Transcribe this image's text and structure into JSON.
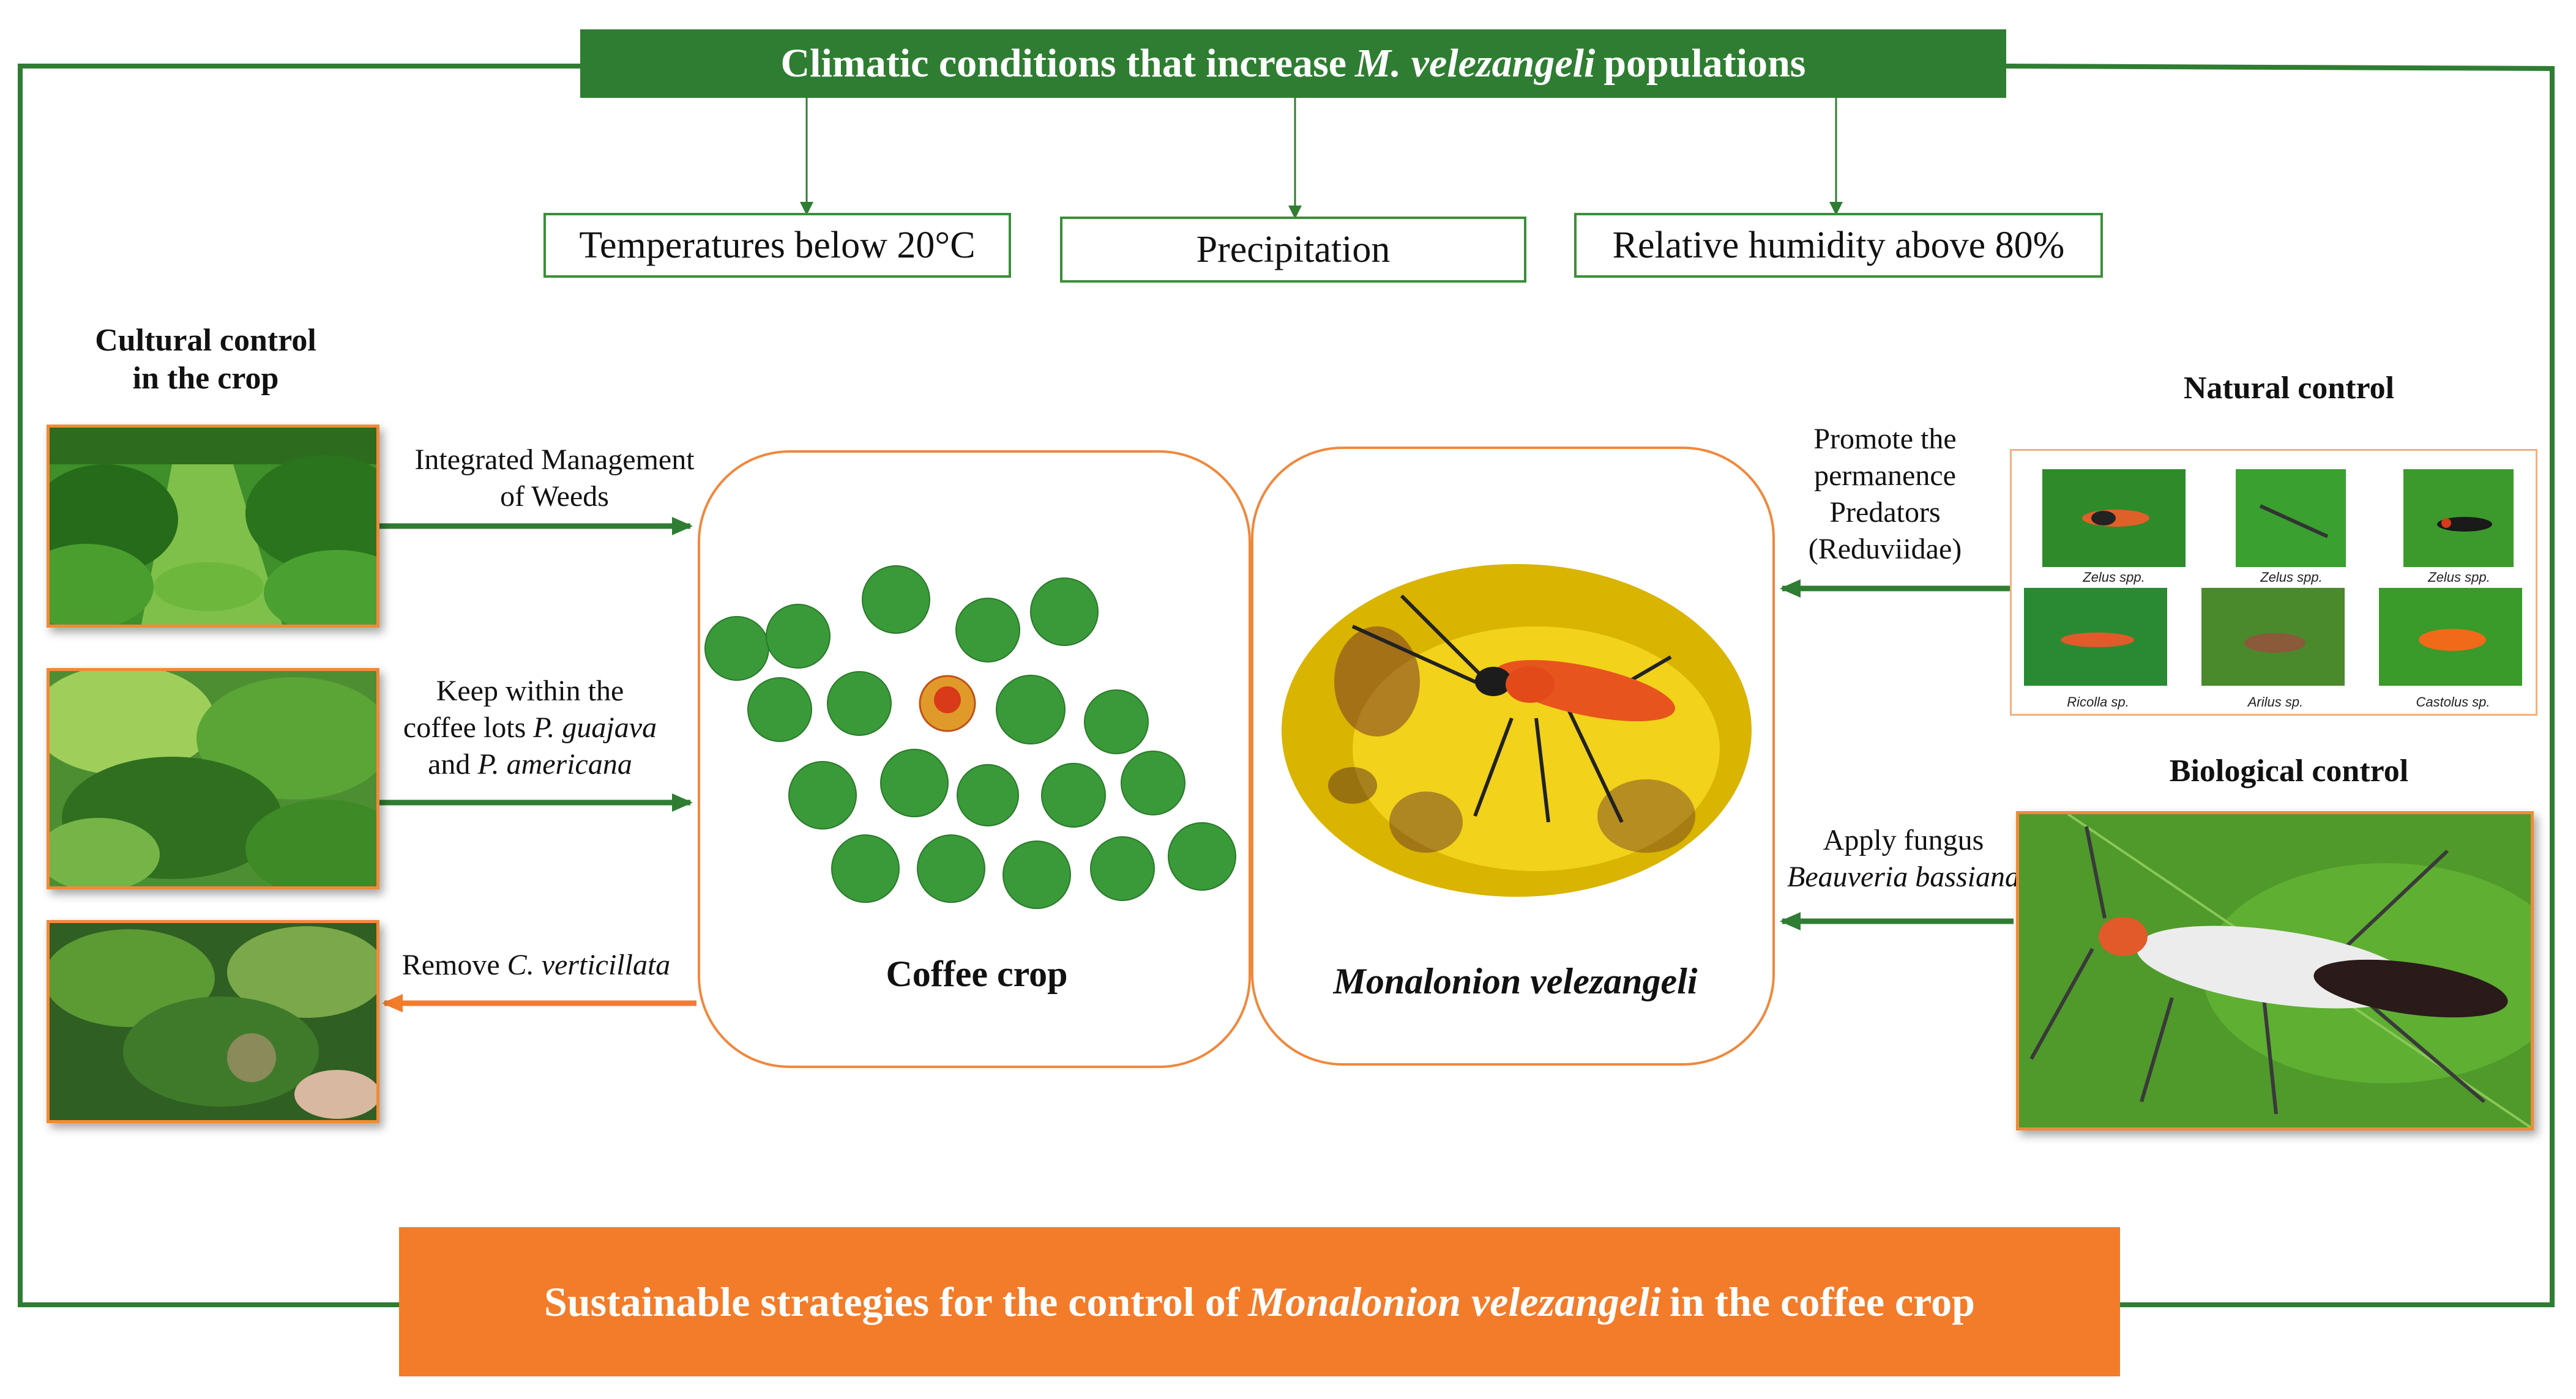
{
  "header": {
    "title_pre": "Climatic conditions that increase ",
    "title_species": "M. velezangeli",
    "title_post": " populations"
  },
  "conditions": [
    {
      "label": "Temperatures below 20°C"
    },
    {
      "label": "Precipitation"
    },
    {
      "label": "Relative humidity above 80%"
    }
  ],
  "cultural": {
    "title_line1": "Cultural control",
    "title_line2": "in the crop",
    "weeds_line1": "Integrated Management",
    "weeds_line2": "of Weeds",
    "keep_line1": "Keep within the",
    "keep_line2_pre": "coffee lots ",
    "keep_line2_species": "P. guajava",
    "keep_line3_pre": "and ",
    "keep_line3_species": "P. americana",
    "remove_pre": "Remove ",
    "remove_species": "C. verticillata"
  },
  "center": {
    "coffee_label": "Coffee crop",
    "pest_label": "Monalonion velezangeli"
  },
  "natural": {
    "title": "Natural control",
    "promote_line1": "Promote the",
    "promote_line2": "permanence",
    "promote_line3": "Predators",
    "promote_line4": "(Reduviidae)",
    "predators": [
      {
        "caption": "Zelus spp."
      },
      {
        "caption": "Zelus spp."
      },
      {
        "caption": "Zelus spp."
      },
      {
        "caption": "Ricolla sp."
      },
      {
        "caption": "Arilus sp."
      },
      {
        "caption": "Castolus sp."
      }
    ]
  },
  "biological": {
    "title": "Biological  control",
    "apply_line1": "Apply fungus",
    "apply_line2": "Beauveria bassiana"
  },
  "footer": {
    "text_pre": "Sustainable strategies for the control of ",
    "text_species": "Monalonion velezangeli",
    "text_post": " in the coffee crop"
  },
  "colors": {
    "green": "#2f7d32",
    "orange": "#f27c2a",
    "box_border": "#3a8f3a"
  }
}
